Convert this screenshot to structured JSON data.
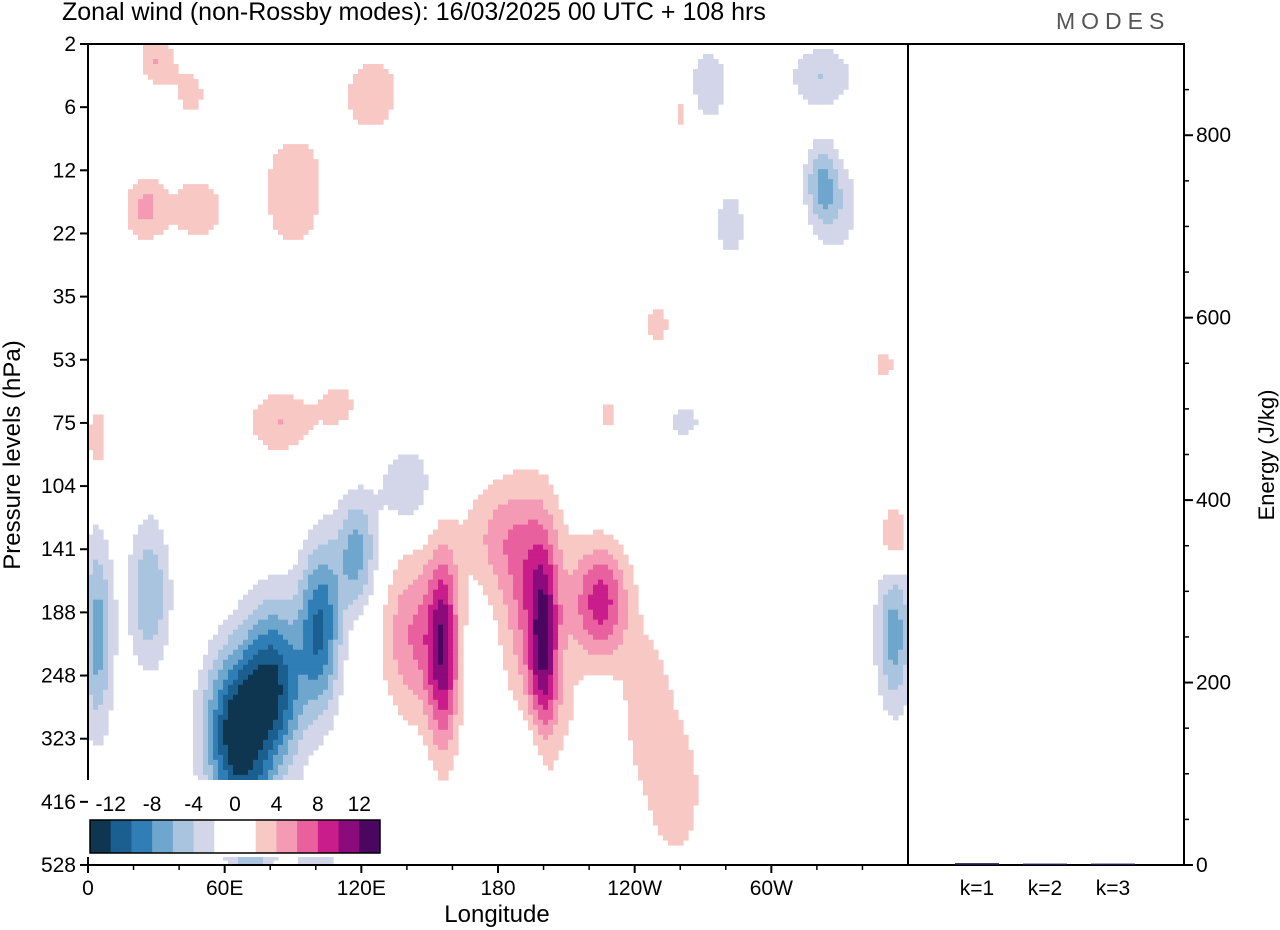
{
  "title": "Zonal wind (non-Rossby modes):  16/03/2025  00 UTC  + 108 hrs",
  "logo": "MODES",
  "colors": {
    "frame": "#000000",
    "palette": [
      "#0e3650",
      "#1a5f8f",
      "#2f7fb6",
      "#6ea6cd",
      "#a9c4de",
      "#d3d6e8",
      "#ffffff",
      "#ffffff",
      "#f8c8c4",
      "#f59ab5",
      "#e8609e",
      "#c81d8a",
      "#8b0a7c",
      "#4a0660"
    ]
  },
  "chart_data": [
    {
      "type": "heatmap",
      "title": "Zonal wind (non-Rossby modes):  16/03/2025  00 UTC  + 108 hrs",
      "xlabel": "Longitude",
      "ylabel": "Pressure levels (hPa)",
      "x_ticks": [
        "0",
        "60E",
        "120E",
        "180",
        "120W",
        "60W"
      ],
      "x_tick_values": [
        0,
        60,
        120,
        180,
        240,
        300
      ],
      "xlim": [
        0,
        360
      ],
      "y_ticks": [
        "2",
        "6",
        "12",
        "22",
        "35",
        "53",
        "75",
        "104",
        "141",
        "188",
        "248",
        "323",
        "416",
        "528"
      ],
      "colorbar_labels": [
        "-12",
        "-8",
        "-4",
        "0",
        "4",
        "8",
        "12"
      ],
      "colorbar_levels": [
        -14,
        -12,
        -10,
        -8,
        -6,
        -4,
        -2,
        0,
        2,
        4,
        6,
        8,
        10,
        12,
        14
      ],
      "features": [
        {
          "lon": 65,
          "level": 0.84,
          "dlon": 14,
          "dlev": 0.1,
          "value": -13
        },
        {
          "lon": 82,
          "level": 0.78,
          "dlon": 13,
          "dlev": 0.1,
          "value": -11
        },
        {
          "lon": 102,
          "level": 0.71,
          "dlon": 9,
          "dlev": 0.1,
          "value": -10
        },
        {
          "lon": 118,
          "level": 0.62,
          "dlon": 9,
          "dlev": 0.07,
          "value": -7
        },
        {
          "lon": 140,
          "level": 0.54,
          "dlon": 12,
          "dlev": 0.05,
          "value": -4
        },
        {
          "lon": 72,
          "level": 0.96,
          "dlon": 10,
          "dlev": 0.07,
          "value": -5
        },
        {
          "lon": 4,
          "level": 0.72,
          "dlon": 7,
          "dlev": 0.12,
          "value": -7
        },
        {
          "lon": 27,
          "level": 0.67,
          "dlon": 9,
          "dlev": 0.09,
          "value": -6
        },
        {
          "lon": 100,
          "level": 1.05,
          "dlon": 12,
          "dlev": 0.1,
          "value": -4
        },
        {
          "lon": 143,
          "level": 0.72,
          "dlon": 14,
          "dlev": 0.1,
          "value": 6
        },
        {
          "lon": 156,
          "level": 0.74,
          "dlon": 7,
          "dlev": 0.12,
          "value": 10
        },
        {
          "lon": 196,
          "level": 0.68,
          "dlon": 14,
          "dlev": 0.13,
          "value": 7
        },
        {
          "lon": 200,
          "level": 0.74,
          "dlon": 6,
          "dlev": 0.11,
          "value": 8
        },
        {
          "lon": 225,
          "level": 0.68,
          "dlon": 12,
          "dlev": 0.07,
          "value": 9
        },
        {
          "lon": 180,
          "level": 0.6,
          "dlon": 16,
          "dlev": 0.07,
          "value": 4
        },
        {
          "lon": 258,
          "level": 0.91,
          "dlon": 14,
          "dlev": 0.1,
          "value": 3
        },
        {
          "lon": 245,
          "level": 0.8,
          "dlon": 12,
          "dlev": 0.1,
          "value": 3
        },
        {
          "lon": 208,
          "level": 0.86,
          "dlon": 12,
          "dlev": 0.08,
          "value": 3
        },
        {
          "lon": 354,
          "level": 0.72,
          "dlon": 8,
          "dlev": 0.09,
          "value": -7
        },
        {
          "lon": 354,
          "level": 0.6,
          "dlon": 6,
          "dlev": 0.04,
          "value": 5
        },
        {
          "lon": 84,
          "level": 0.46,
          "dlon": 14,
          "dlev": 0.04,
          "value": 4
        },
        {
          "lon": 110,
          "level": 0.44,
          "dlon": 12,
          "dlev": 0.04,
          "value": 2.5
        },
        {
          "lon": 4,
          "level": 0.48,
          "dlon": 6,
          "dlev": 0.05,
          "value": 3
        },
        {
          "lon": 48,
          "level": 0.2,
          "dlon": 14,
          "dlev": 0.05,
          "value": 3
        },
        {
          "lon": 25,
          "level": 0.2,
          "dlon": 9,
          "dlev": 0.04,
          "value": 4.5
        },
        {
          "lon": 90,
          "level": 0.18,
          "dlon": 18,
          "dlev": 0.09,
          "value": 3
        },
        {
          "lon": 125,
          "level": 0.06,
          "dlon": 20,
          "dlev": 0.08,
          "value": 2.5
        },
        {
          "lon": 30,
          "level": 0.02,
          "dlon": 8,
          "dlev": 0.03,
          "value": 4
        },
        {
          "lon": 272,
          "level": 0.05,
          "dlon": 12,
          "dlev": 0.06,
          "value": -3
        },
        {
          "lon": 322,
          "level": 0.17,
          "dlon": 7,
          "dlev": 0.05,
          "value": -6
        },
        {
          "lon": 330,
          "level": 0.2,
          "dlon": 10,
          "dlev": 0.06,
          "value": -3
        },
        {
          "lon": 282,
          "level": 0.22,
          "dlon": 8,
          "dlev": 0.05,
          "value": -3
        },
        {
          "lon": 260,
          "level": 0.08,
          "dlon": 5,
          "dlev": 0.05,
          "value": 3
        },
        {
          "lon": 250,
          "level": 0.34,
          "dlon": 8,
          "dlev": 0.04,
          "value": 2.5
        },
        {
          "lon": 228,
          "level": 0.45,
          "dlon": 6,
          "dlev": 0.03,
          "value": 2.5
        },
        {
          "lon": 262,
          "level": 0.46,
          "dlon": 10,
          "dlev": 0.03,
          "value": -2.5
        },
        {
          "lon": 322,
          "level": 0.04,
          "dlon": 14,
          "dlev": 0.04,
          "value": -4
        },
        {
          "lon": 45,
          "level": 0.06,
          "dlon": 10,
          "dlev": 0.04,
          "value": 2.5
        },
        {
          "lon": 350,
          "level": 0.39,
          "dlon": 6,
          "dlev": 0.03,
          "value": 2.5
        },
        {
          "lon": 200,
          "level": 0.86,
          "dlon": 18,
          "dlev": 0.05,
          "value": -2.5
        }
      ]
    },
    {
      "type": "bar",
      "categories": [
        "k=1",
        "k=2",
        "k=3"
      ],
      "values": [
        2,
        1.5,
        1.5
      ],
      "ylabel": "Energy (J/kg)",
      "ylim": [
        0,
        900
      ],
      "y_ticks": [
        0,
        200,
        400,
        600,
        800
      ]
    }
  ]
}
